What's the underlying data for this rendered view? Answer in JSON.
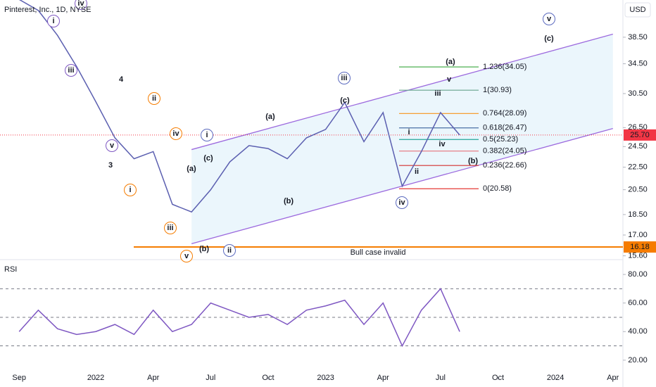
{
  "chart_data": [
    {
      "type": "line",
      "title": "Pinterest, Inc., 1D, NYSE",
      "currency": "USD",
      "log_scale": true,
      "x": [
        "2021-09",
        "2021-10",
        "2021-11",
        "2021-12",
        "2022-01",
        "2022-02",
        "2022-03",
        "2022-04",
        "2022-05",
        "2022-06",
        "2022-07",
        "2022-08",
        "2022-09",
        "2022-10",
        "2022-11",
        "2022-12",
        "2023-01",
        "2023-02",
        "2023-03",
        "2023-04",
        "2023-05",
        "2023-06",
        "2023-07",
        "2023-08"
      ],
      "values": [
        45,
        43,
        38.8,
        34.1,
        29.5,
        25.4,
        23.3,
        24,
        19.3,
        18.7,
        20.5,
        23,
        24.6,
        24.3,
        23.3,
        25.4,
        26.3,
        29.4,
        25,
        28.2,
        20.8,
        24,
        28.2,
        25.7
      ],
      "color": "#5b5fb0",
      "xlim": [
        "2021-08",
        "2024-05"
      ],
      "xticks": [
        {
          "value": "2021-09",
          "label": "Sep"
        },
        {
          "value": "2022-01",
          "label": "2022"
        },
        {
          "value": "2022-04",
          "label": "Apr"
        },
        {
          "value": "2022-07",
          "label": "Jul"
        },
        {
          "value": "2022-10",
          "label": "Oct"
        },
        {
          "value": "2023-01",
          "label": "2023"
        },
        {
          "value": "2023-04",
          "label": "Apr"
        },
        {
          "value": "2023-07",
          "label": "Jul"
        },
        {
          "value": "2023-10",
          "label": "Oct"
        },
        {
          "value": "2024-01",
          "label": "2024"
        },
        {
          "value": "2024-04",
          "label": "Apr"
        }
      ],
      "ylim": [
        15.4,
        44.9
      ],
      "yticks": [
        {
          "value": 15.6,
          "label": "15.60"
        },
        {
          "value": 17,
          "label": "17.00"
        },
        {
          "value": 18.5,
          "label": "18.50"
        },
        {
          "value": 20.5,
          "label": "20.50"
        },
        {
          "value": 22.5,
          "label": "22.50"
        },
        {
          "value": 24.5,
          "label": "24.50"
        },
        {
          "value": 26.5,
          "label": "26.50"
        },
        {
          "value": 30.5,
          "label": "30.50"
        },
        {
          "value": 34.5,
          "label": "34.50"
        },
        {
          "value": 38.5,
          "label": "38.50"
        }
      ],
      "last": {
        "value": 25.7,
        "label": "25.70",
        "color": "#f23645"
      },
      "hline": {
        "value": 16.18,
        "label": "16.18",
        "text": "Bull case invalid",
        "color": "#f57c00"
      },
      "channel": {
        "x": [
          "2022-06",
          "2024-04"
        ],
        "upper": [
          24.2,
          39
        ],
        "lower": [
          16.4,
          26.4
        ],
        "color": "#9c6ade"
      },
      "fib": [
        {
          "value": 34.05,
          "label": "1.236(34.05)",
          "color": "#4caf50"
        },
        {
          "value": 30.93,
          "label": "1(30.93)",
          "color": "#66a38d"
        },
        {
          "value": 28.09,
          "label": "0.764(28.09)",
          "color": "#f7931a"
        },
        {
          "value": 26.47,
          "label": "0.618(26.47)",
          "color": "#4a6fa5"
        },
        {
          "value": 25.23,
          "label": "0.5(25.23)",
          "color": "#26a69a"
        },
        {
          "value": 24.05,
          "label": "0.382(24.05)",
          "color": "#e5737b"
        },
        {
          "value": 22.66,
          "label": "0.236(22.66)",
          "color": "#d32f2f"
        },
        {
          "value": 20.58,
          "label": "0(20.58)",
          "color": "#e53935"
        }
      ],
      "annotations": [
        "iv",
        "i",
        "iii",
        "v",
        "4",
        "3",
        "ii",
        "iv",
        "i",
        "iii",
        "v",
        "(a)",
        "(c)",
        "(b)",
        "ii",
        "i",
        "(a)",
        "(b)",
        "iii",
        "(c)",
        "iv",
        "(a)",
        "iii",
        "v",
        "i",
        "ii",
        "iv",
        "(b)",
        "v",
        "(c)"
      ]
    },
    {
      "type": "line",
      "title": "RSI",
      "x": [
        "2021-09",
        "2021-10",
        "2021-11",
        "2021-12",
        "2022-01",
        "2022-02",
        "2022-03",
        "2022-04",
        "2022-05",
        "2022-06",
        "2022-07",
        "2022-08",
        "2022-09",
        "2022-10",
        "2022-11",
        "2022-12",
        "2023-01",
        "2023-02",
        "2023-03",
        "2023-04",
        "2023-05",
        "2023-06",
        "2023-07",
        "2023-08"
      ],
      "values": [
        40,
        55,
        42,
        38,
        40,
        45,
        38,
        55,
        40,
        45,
        60,
        55,
        50,
        52,
        45,
        55,
        58,
        62,
        45,
        60,
        30,
        55,
        70,
        40
      ],
      "color": "#7e57c2",
      "ylim": [
        8.6,
        88.9
      ],
      "yticks": [
        {
          "value": 20,
          "label": "20.00"
        },
        {
          "value": 40,
          "label": "40.00"
        },
        {
          "value": 60,
          "label": "60.00"
        },
        {
          "value": 80,
          "label": "80.00"
        }
      ],
      "levels": [
        70,
        50,
        30
      ]
    }
  ]
}
